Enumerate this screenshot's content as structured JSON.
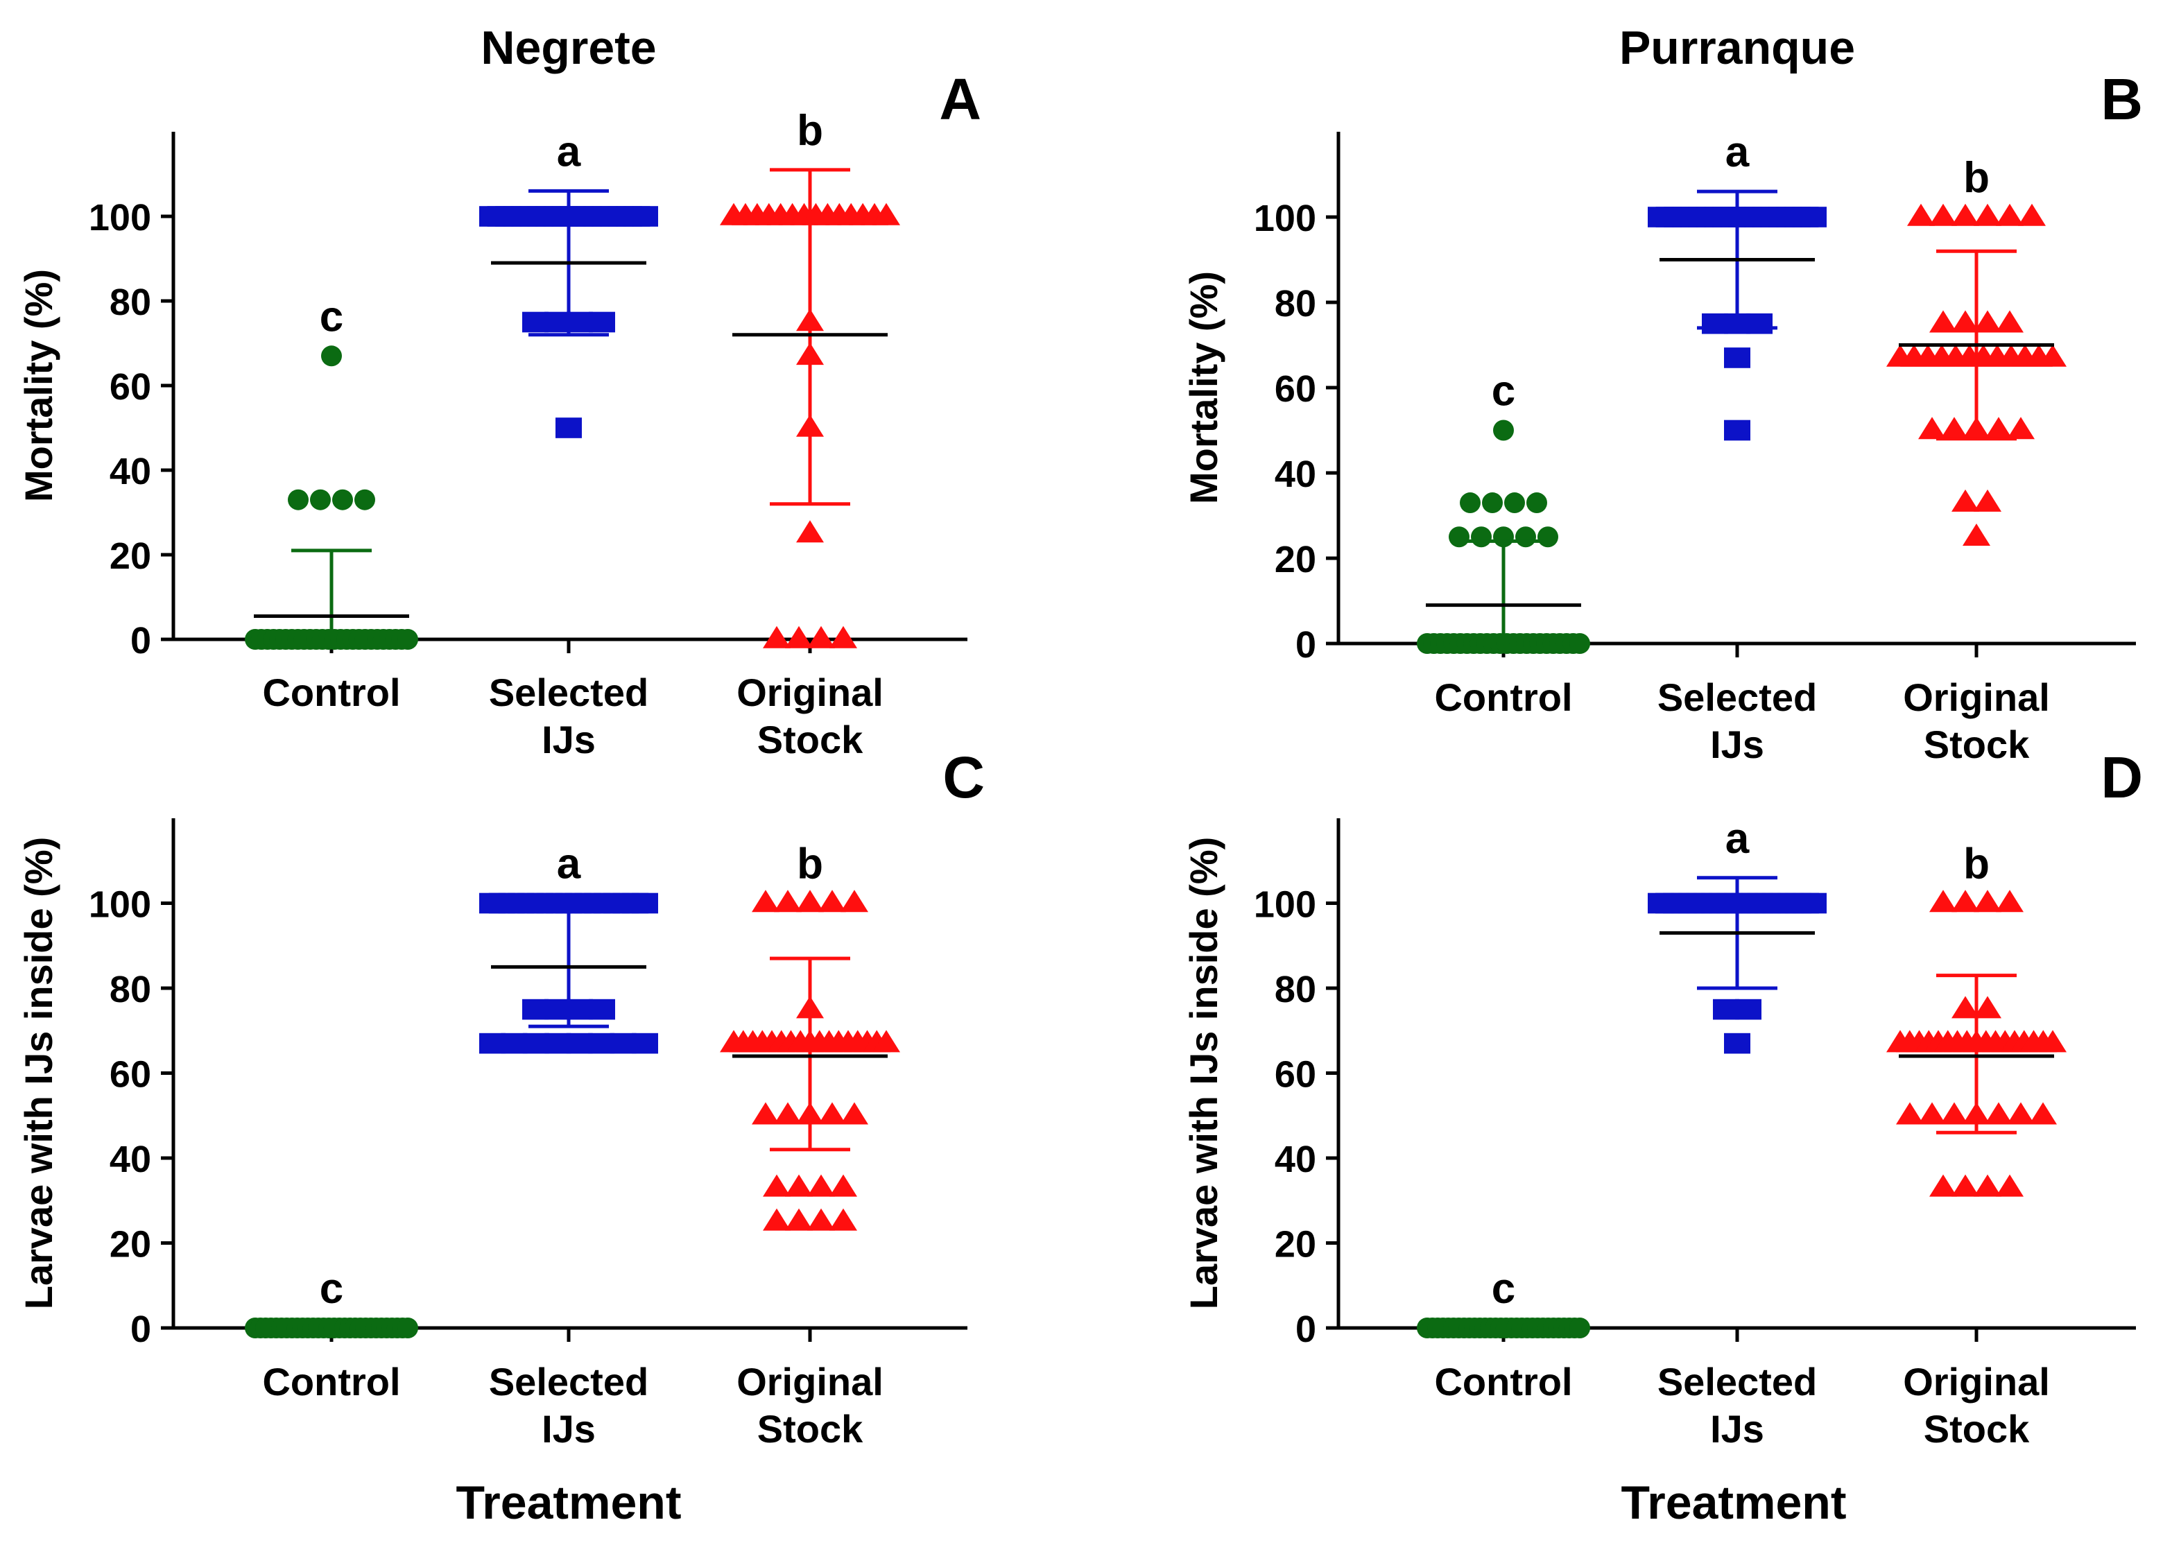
{
  "figure": {
    "column_titles": [
      "Negrete",
      "Purranque"
    ],
    "x_title": "Treatment"
  },
  "colors": {
    "control": "#0b6b12",
    "selected": "#0c12c8",
    "original": "#ff0f0f",
    "axis": "#000000"
  },
  "chart_data": [
    {
      "type": "scatter",
      "panel_label": "A",
      "title": "Negrete",
      "ylabel": "Mortality (%)",
      "xlabel": "",
      "ylim": [
        0,
        120
      ],
      "yticks": [
        0,
        20,
        40,
        60,
        80,
        100
      ],
      "categories": [
        "Control",
        "Selected IJs",
        "Original Stock"
      ],
      "category_lines": [
        [
          "Control"
        ],
        [
          "Selected",
          "IJs"
        ],
        [
          "Original",
          "Stock"
        ]
      ],
      "series": [
        {
          "name": "Control",
          "marker": "circle",
          "color": "#0b6b12",
          "values": [
            0,
            0,
            0,
            0,
            0,
            0,
            0,
            0,
            0,
            0,
            0,
            0,
            0,
            0,
            0,
            0,
            0,
            0,
            0,
            0,
            0,
            0,
            0,
            0,
            0,
            0,
            33,
            33,
            33,
            33,
            67
          ],
          "mean": 5.5,
          "sd_low": 0,
          "sd_high": 21,
          "letter": "c"
        },
        {
          "name": "Selected IJs",
          "marker": "square",
          "color": "#0c12c8",
          "values": [
            100,
            100,
            100,
            100,
            100,
            100,
            100,
            100,
            100,
            100,
            100,
            100,
            100,
            100,
            100,
            100,
            100,
            100,
            100,
            100,
            75,
            75,
            75,
            75,
            50
          ],
          "mean": 89,
          "sd_low": 72,
          "sd_high": 106,
          "letter": "a"
        },
        {
          "name": "Original Stock",
          "marker": "triangle",
          "color": "#ff0f0f",
          "values": [
            100,
            100,
            100,
            100,
            100,
            100,
            100,
            100,
            100,
            100,
            100,
            100,
            100,
            100,
            75,
            67,
            50,
            25,
            0,
            0,
            0,
            0
          ],
          "mean": 72,
          "sd_low": 32,
          "sd_high": 111,
          "letter": "b"
        }
      ]
    },
    {
      "type": "scatter",
      "panel_label": "B",
      "title": "Purranque",
      "ylabel": "Mortality (%)",
      "xlabel": "",
      "ylim": [
        0,
        120
      ],
      "yticks": [
        0,
        20,
        40,
        60,
        80,
        100
      ],
      "categories": [
        "Control",
        "Selected IJs",
        "Original Stock"
      ],
      "category_lines": [
        [
          "Control"
        ],
        [
          "Selected",
          "IJs"
        ],
        [
          "Original",
          "Stock"
        ]
      ],
      "series": [
        {
          "name": "Control",
          "marker": "circle",
          "color": "#0b6b12",
          "values": [
            0,
            0,
            0,
            0,
            0,
            0,
            0,
            0,
            0,
            0,
            0,
            0,
            0,
            0,
            0,
            0,
            0,
            0,
            0,
            0,
            0,
            0,
            0,
            0,
            25,
            25,
            25,
            25,
            25,
            33,
            33,
            33,
            33,
            50
          ],
          "mean": 9,
          "sd_low": 0,
          "sd_high": 24,
          "letter": "c"
        },
        {
          "name": "Selected IJs",
          "marker": "square",
          "color": "#0c12c8",
          "values": [
            100,
            100,
            100,
            100,
            100,
            100,
            100,
            100,
            100,
            100,
            100,
            100,
            100,
            100,
            100,
            100,
            100,
            100,
            100,
            100,
            75,
            75,
            75,
            67,
            50
          ],
          "mean": 90,
          "sd_low": 74,
          "sd_high": 106,
          "letter": "a"
        },
        {
          "name": "Original Stock",
          "marker": "triangle",
          "color": "#ff0f0f",
          "values": [
            100,
            100,
            100,
            100,
            100,
            100,
            75,
            75,
            75,
            75,
            67,
            67,
            67,
            67,
            67,
            67,
            67,
            67,
            67,
            67,
            67,
            67,
            50,
            50,
            50,
            50,
            50,
            33,
            33,
            25
          ],
          "mean": 70,
          "sd_low": 48,
          "sd_high": 92,
          "letter": "b"
        }
      ]
    },
    {
      "type": "scatter",
      "panel_label": "C",
      "title": "",
      "ylabel": "Larvae with IJs inside (%)",
      "xlabel": "Treatment",
      "ylim": [
        0,
        120
      ],
      "yticks": [
        0,
        20,
        40,
        60,
        80,
        100
      ],
      "categories": [
        "Control",
        "Selected IJs",
        "Original Stock"
      ],
      "category_lines": [
        [
          "Control"
        ],
        [
          "Selected",
          "IJs"
        ],
        [
          "Original",
          "Stock"
        ]
      ],
      "series": [
        {
          "name": "Control",
          "marker": "circle",
          "color": "#0b6b12",
          "values": [
            0,
            0,
            0,
            0,
            0,
            0,
            0,
            0,
            0,
            0,
            0,
            0,
            0,
            0,
            0,
            0,
            0,
            0,
            0,
            0,
            0,
            0,
            0,
            0,
            0,
            0,
            0,
            0,
            0,
            0
          ],
          "mean": 0,
          "sd_low": 0,
          "sd_high": 0,
          "letter": "c"
        },
        {
          "name": "Selected IJs",
          "marker": "square",
          "color": "#0c12c8",
          "values": [
            100,
            100,
            100,
            100,
            100,
            100,
            100,
            100,
            100,
            100,
            100,
            100,
            100,
            100,
            100,
            100,
            100,
            75,
            75,
            75,
            75,
            67,
            67,
            67,
            67,
            67,
            67,
            67,
            67
          ],
          "mean": 85,
          "sd_low": 71,
          "sd_high": 100,
          "letter": "a"
        },
        {
          "name": "Original Stock",
          "marker": "triangle",
          "color": "#ff0f0f",
          "values": [
            100,
            100,
            100,
            100,
            100,
            75,
            67,
            67,
            67,
            67,
            67,
            67,
            67,
            67,
            67,
            67,
            67,
            67,
            67,
            67,
            67,
            67,
            67,
            50,
            50,
            50,
            50,
            50,
            33,
            33,
            33,
            33,
            25,
            25,
            25,
            25
          ],
          "mean": 64,
          "sd_low": 42,
          "sd_high": 87,
          "letter": "b"
        }
      ]
    },
    {
      "type": "scatter",
      "panel_label": "D",
      "title": "",
      "ylabel": "Larvae with IJs inside (%)",
      "xlabel": "Treatment",
      "ylim": [
        0,
        120
      ],
      "yticks": [
        0,
        20,
        40,
        60,
        80,
        100
      ],
      "categories": [
        "Control",
        "Selected IJs",
        "Original Stock"
      ],
      "category_lines": [
        [
          "Control"
        ],
        [
          "Selected",
          "IJs"
        ],
        [
          "Original",
          "Stock"
        ]
      ],
      "series": [
        {
          "name": "Control",
          "marker": "circle",
          "color": "#0b6b12",
          "values": [
            0,
            0,
            0,
            0,
            0,
            0,
            0,
            0,
            0,
            0,
            0,
            0,
            0,
            0,
            0,
            0,
            0,
            0,
            0,
            0,
            0,
            0,
            0,
            0,
            0,
            0,
            0,
            0,
            0,
            0
          ],
          "mean": 0,
          "sd_low": 0,
          "sd_high": 0,
          "letter": "c"
        },
        {
          "name": "Selected IJs",
          "marker": "square",
          "color": "#0c12c8",
          "values": [
            100,
            100,
            100,
            100,
            100,
            100,
            100,
            100,
            100,
            100,
            100,
            100,
            100,
            100,
            100,
            100,
            100,
            100,
            100,
            100,
            100,
            75,
            75,
            67
          ],
          "mean": 93,
          "sd_low": 80,
          "sd_high": 106,
          "letter": "a"
        },
        {
          "name": "Original Stock",
          "marker": "triangle",
          "color": "#ff0f0f",
          "values": [
            100,
            100,
            100,
            100,
            75,
            75,
            67,
            67,
            67,
            67,
            67,
            67,
            67,
            67,
            67,
            67,
            67,
            67,
            67,
            67,
            67,
            67,
            67,
            50,
            50,
            50,
            50,
            50,
            50,
            50,
            33,
            33,
            33,
            33
          ],
          "mean": 64,
          "sd_low": 46,
          "sd_high": 83,
          "letter": "b"
        }
      ]
    }
  ]
}
